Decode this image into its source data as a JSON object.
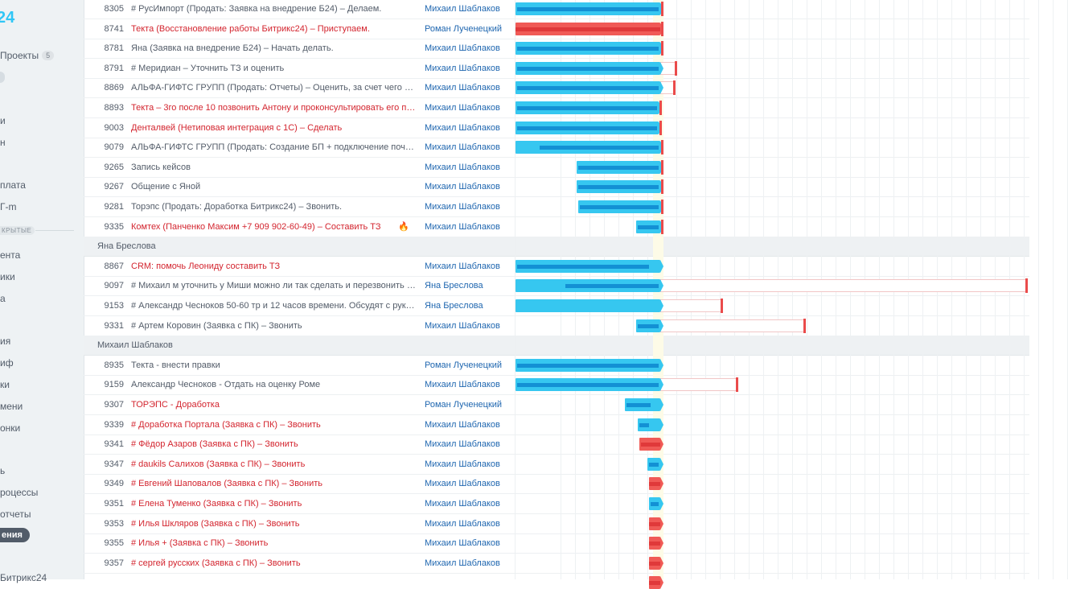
{
  "sidebar": {
    "logo": "24",
    "projects_label": "Проекты",
    "projects_count": "5",
    "items": [
      "и",
      "н",
      "плата",
      "Г-m"
    ],
    "section_label": "КРЫТЫЕ",
    "items2": [
      "ента",
      "ики",
      "а",
      "ия",
      "иф",
      "ки",
      "мени",
      "онки",
      "ь",
      "роцессы",
      "отчеты"
    ],
    "active_item": "ения",
    "footer": "Битрикс24"
  },
  "colors": {
    "bar_blue": "#36c7f0",
    "bar_red": "#f05a56",
    "link": "#2067b0",
    "overdue": "#d3242e"
  },
  "tasks": [
    {
      "id": "8305",
      "title": "# РусИмпорт (Продать: Заявка на внедрение Б24) – Делаем.",
      "resp": "Михаил Шаблаков",
      "red": false
    },
    {
      "id": "8741",
      "title": "Текта (Восстановление работы Битрикс24) – Приступаем.",
      "resp": "Роман Лученецкий",
      "red": true
    },
    {
      "id": "8781",
      "title": "Яна (Заявка на внедрение Б24) – Начать делать.",
      "resp": "Михаил Шаблаков",
      "red": false
    },
    {
      "id": "8791",
      "title": "# Меридиан – Уточнить ТЗ и оценить",
      "resp": "Михаил Шаблаков",
      "red": false
    },
    {
      "id": "8869",
      "title": "АЛЬФА-ГИФТС ГРУПП (Продать: Отчеты) – Оценить, за счет чего …",
      "resp": "Михаил Шаблаков",
      "red": false
    },
    {
      "id": "8893",
      "title": "Текта – 3го после 10 позвонить Антону и проконсультировать его п…",
      "resp": "Михаил Шаблаков",
      "red": true
    },
    {
      "id": "9003",
      "title": "Денталвей (Нетиповая интеграция с 1С) – Сделать",
      "resp": "Михаил Шаблаков",
      "red": true
    },
    {
      "id": "9079",
      "title": "АЛЬФА-ГИФТС ГРУПП (Продать: Создание БП + подключение поч…",
      "resp": "Михаил Шаблаков",
      "red": false
    },
    {
      "id": "9265",
      "title": "Запись кейсов",
      "resp": "Михаил Шаблаков",
      "red": false
    },
    {
      "id": "9267",
      "title": "Общение с Яной",
      "resp": "Михаил Шаблаков",
      "red": false
    },
    {
      "id": "9281",
      "title": "Торэпс (Продать: Доработка Битрикс24) – Звонить.",
      "resp": "Михаил Шаблаков",
      "red": false
    },
    {
      "id": "9335",
      "title": "Комтех (Панченко Максим +7 909 902-60-49) – Составить ТЗ",
      "resp": "Михаил Шаблаков",
      "red": true,
      "fire": "🔥"
    },
    {
      "group": "Яна Бреслова"
    },
    {
      "id": "8867",
      "title": "CRM: помочь Леониду составить ТЗ",
      "resp": "Михаил Шаблаков",
      "red": true
    },
    {
      "id": "9097",
      "title": "# Михаил м уточнить у Миши можно ли так сделать и перезвонить …",
      "resp": "Яна Бреслова",
      "red": false
    },
    {
      "id": "9153",
      "title": "# Александр Чесноков 50-60 тр и 12 часов времени. Обсудят с рук…",
      "resp": "Яна Бреслова",
      "red": false
    },
    {
      "id": "9331",
      "title": "# Артем Коровин (Заявка с ПК) – Звонить",
      "resp": "Михаил Шаблаков",
      "red": false
    },
    {
      "group": "Михаил Шаблаков"
    },
    {
      "id": "8935",
      "title": "Текта - внести правки",
      "resp": "Роман Лученецкий",
      "red": false
    },
    {
      "id": "9159",
      "title": "Александр Чесноков - Отдать на оценку Роме",
      "resp": "Михаил Шаблаков",
      "red": false
    },
    {
      "id": "9307",
      "title": "ТОРЭПС - Доработка",
      "resp": "Роман Лученецкий",
      "red": true
    },
    {
      "id": "9339",
      "title": "# Доработка Портала (Заявка с ПК) – Звонить",
      "resp": "Михаил Шаблаков",
      "red": true
    },
    {
      "id": "9341",
      "title": "# Фёдор Азаров (Заявка с ПК) – Звонить",
      "resp": "Михаил Шаблаков",
      "red": true
    },
    {
      "id": "9347",
      "title": "# daukils Салихов (Заявка с ПК) – Звонить",
      "resp": "Михаил Шаблаков",
      "red": true
    },
    {
      "id": "9349",
      "title": "# Евгений Шаповалов (Заявка с ПК) – Звонить",
      "resp": "Михаил Шаблаков",
      "red": true
    },
    {
      "id": "9351",
      "title": "# Елена Туменко (Заявка с ПК) – Звонить",
      "resp": "Михаил Шаблаков",
      "red": true
    },
    {
      "id": "9353",
      "title": "# Илья Шкляров (Заявка с ПК) – Звонить",
      "resp": "Михаил Шаблаков",
      "red": true
    },
    {
      "id": "9355",
      "title": "# Илья + (Заявка с ПК) – Звонить",
      "resp": "Михаил Шаблаков",
      "red": true
    },
    {
      "id": "9357",
      "title": "# сергей русских (Заявка с ПК) – Звонить",
      "resp": "Михаил Шаблаков",
      "red": true
    }
  ]
}
